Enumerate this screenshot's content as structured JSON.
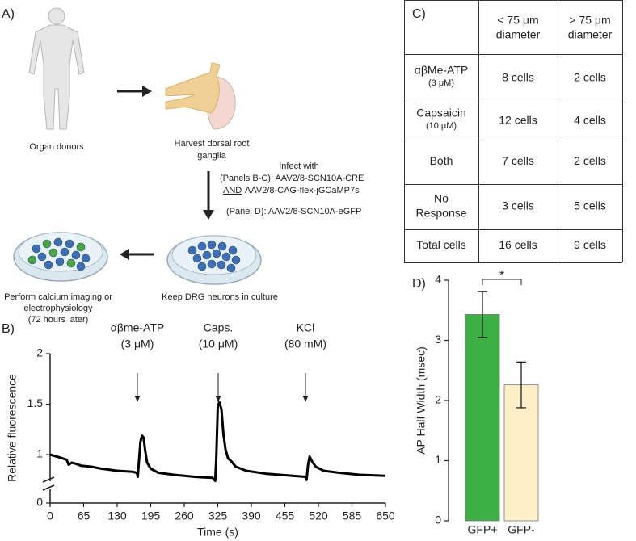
{
  "panel_a": {
    "label": "A)",
    "donors": "Organ donors",
    "harvest": [
      "Harvest dorsal root",
      "ganglia"
    ],
    "infect_title": "Infect with",
    "infect_bc": "(Panels B-C): AAV2/8-SCN10A-CRE",
    "infect_and": "AND",
    "infect_and_rest": "AAV2/8-CAG-flex-jGCaMP7s",
    "infect_d": "(Panel D): AAV2/8-SCN10A-eGFP",
    "culture": "Keep DRG neurons in culture",
    "imaging": [
      "Perform calcium imaging or",
      "electrophysiology",
      "(72 hours later)"
    ]
  },
  "table": {
    "label": "C)",
    "header": [
      [
        "< 75 μm",
        "diameter"
      ],
      [
        "> 75 μm",
        "diameter"
      ]
    ],
    "rows": [
      {
        "label": [
          "αβMe-ATP"
        ],
        "note": "(3 μM)",
        "cells": [
          "8 cells",
          "2 cells"
        ]
      },
      {
        "label": [
          "Capsaicin"
        ],
        "note": "(10 μM)",
        "cells": [
          "12 cells",
          "4 cells"
        ]
      },
      {
        "label": [
          "Both"
        ],
        "cells": [
          "7 cells",
          "2 cells"
        ]
      },
      {
        "label": [
          "No",
          "Response"
        ],
        "cells": [
          "3 cells",
          "5 cells"
        ]
      },
      {
        "label": [
          "Total cells"
        ],
        "cells": [
          "16 cells",
          "9 cells"
        ]
      }
    ]
  },
  "chart_data": [
    {
      "type": "line",
      "label": "B)",
      "x_label": "Time (s)",
      "y_label": "Relative fluorescence",
      "color": "#000000",
      "axis_break": true,
      "x": [
        0,
        20,
        32,
        36,
        42,
        50,
        60,
        80,
        100,
        130,
        160,
        168,
        170,
        172,
        175,
        178,
        181,
        184,
        188,
        195,
        210,
        240,
        280,
        315,
        320,
        322,
        325,
        328,
        332,
        336,
        340,
        345,
        350,
        360,
        380,
        420,
        470,
        495,
        497,
        500,
        503,
        508,
        515,
        530,
        560,
        600,
        650
      ],
      "values": [
        1.0,
        0.97,
        0.95,
        0.9,
        0.92,
        0.91,
        0.89,
        0.88,
        0.86,
        0.84,
        0.83,
        0.82,
        0.78,
        0.92,
        1.12,
        1.19,
        1.17,
        1.05,
        0.92,
        0.86,
        0.82,
        0.8,
        0.78,
        0.77,
        0.74,
        0.96,
        1.48,
        1.52,
        1.45,
        1.2,
        1.05,
        0.96,
        0.94,
        0.88,
        0.84,
        0.81,
        0.79,
        0.78,
        0.75,
        0.9,
        0.98,
        0.93,
        0.88,
        0.84,
        0.82,
        0.8,
        0.79
      ],
      "xlim": [
        0,
        650
      ],
      "xticks": [
        0,
        65,
        130,
        195,
        260,
        325,
        390,
        455,
        520,
        585,
        650
      ],
      "ylim": [
        0,
        2
      ],
      "yticks": [
        0,
        1,
        1.5,
        2
      ],
      "annotations": [
        [
          "αβme-ATP",
          "(3 μM)"
        ],
        [
          "Caps.",
          "(10 μM)"
        ],
        [
          "KCl",
          "(80 mM)"
        ]
      ]
    },
    {
      "type": "bar",
      "label": "D)",
      "y_label": "AP Half Width (msec)",
      "categories": [
        "GFP+",
        "GFP-"
      ],
      "values": [
        3.43,
        2.26
      ],
      "errors": [
        0.38,
        0.38
      ],
      "colors": [
        "#3cb043",
        "#fdf0c8"
      ],
      "ylim": [
        0,
        4
      ],
      "yticks": [
        0,
        1,
        2,
        3,
        4
      ],
      "significance": "*"
    }
  ]
}
